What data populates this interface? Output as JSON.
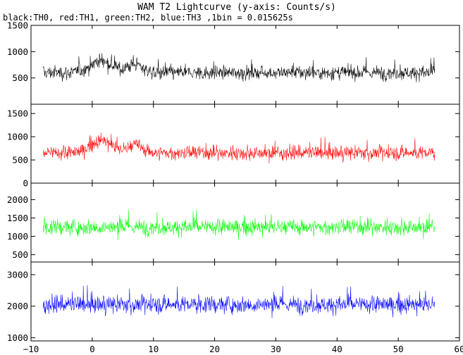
{
  "chart_data": [
    {
      "type": "line",
      "title": "WAM T2 Lightcurve (y-axis: Counts/s)",
      "subtitle": "black:TH0, red:TH1, green:TH2, blue:TH3 ,1bin = 0.015625s",
      "xlim": [
        -10,
        60
      ],
      "ylim": [
        0,
        1500
      ],
      "yticks": [
        500,
        1000,
        1500
      ],
      "series": [
        {
          "name": "TH0",
          "color": "#000000",
          "x_range": [
            -8,
            56
          ],
          "baseline": 600,
          "spread": 260,
          "bumps": [
            {
              "x": 1.5,
              "width": 3.5,
              "height": 230
            },
            {
              "x": 7.0,
              "width": 2.5,
              "height": 160
            }
          ]
        }
      ]
    },
    {
      "type": "line",
      "xlim": [
        -10,
        60
      ],
      "ylim": [
        0,
        1700
      ],
      "yticks": [
        0,
        500,
        1000,
        1500
      ],
      "series": [
        {
          "name": "TH1",
          "color": "#ff0000",
          "x_range": [
            -8,
            56
          ],
          "baseline": 650,
          "spread": 290,
          "bumps": [
            {
              "x": 1.5,
              "width": 3.5,
              "height": 270
            },
            {
              "x": 7.0,
              "width": 2.5,
              "height": 170
            }
          ]
        }
      ]
    },
    {
      "type": "line",
      "xlim": [
        -10,
        60
      ],
      "ylim": [
        300,
        2450
      ],
      "yticks": [
        500,
        1000,
        1500,
        2000
      ],
      "series": [
        {
          "name": "TH2",
          "color": "#00ff00",
          "x_range": [
            -8,
            56
          ],
          "baseline": 1250,
          "spread": 420,
          "bumps": []
        }
      ]
    },
    {
      "type": "line",
      "xlim": [
        -10,
        60
      ],
      "ylim": [
        900,
        3400
      ],
      "yticks": [
        1000,
        2000,
        3000
      ],
      "series": [
        {
          "name": "TH3",
          "color": "#0000ff",
          "x_range": [
            -8,
            56
          ],
          "baseline": 2050,
          "spread": 520,
          "bumps": []
        }
      ]
    }
  ],
  "x_axis": {
    "ticks": [
      -10,
      0,
      10,
      20,
      30,
      40,
      50,
      60
    ]
  }
}
